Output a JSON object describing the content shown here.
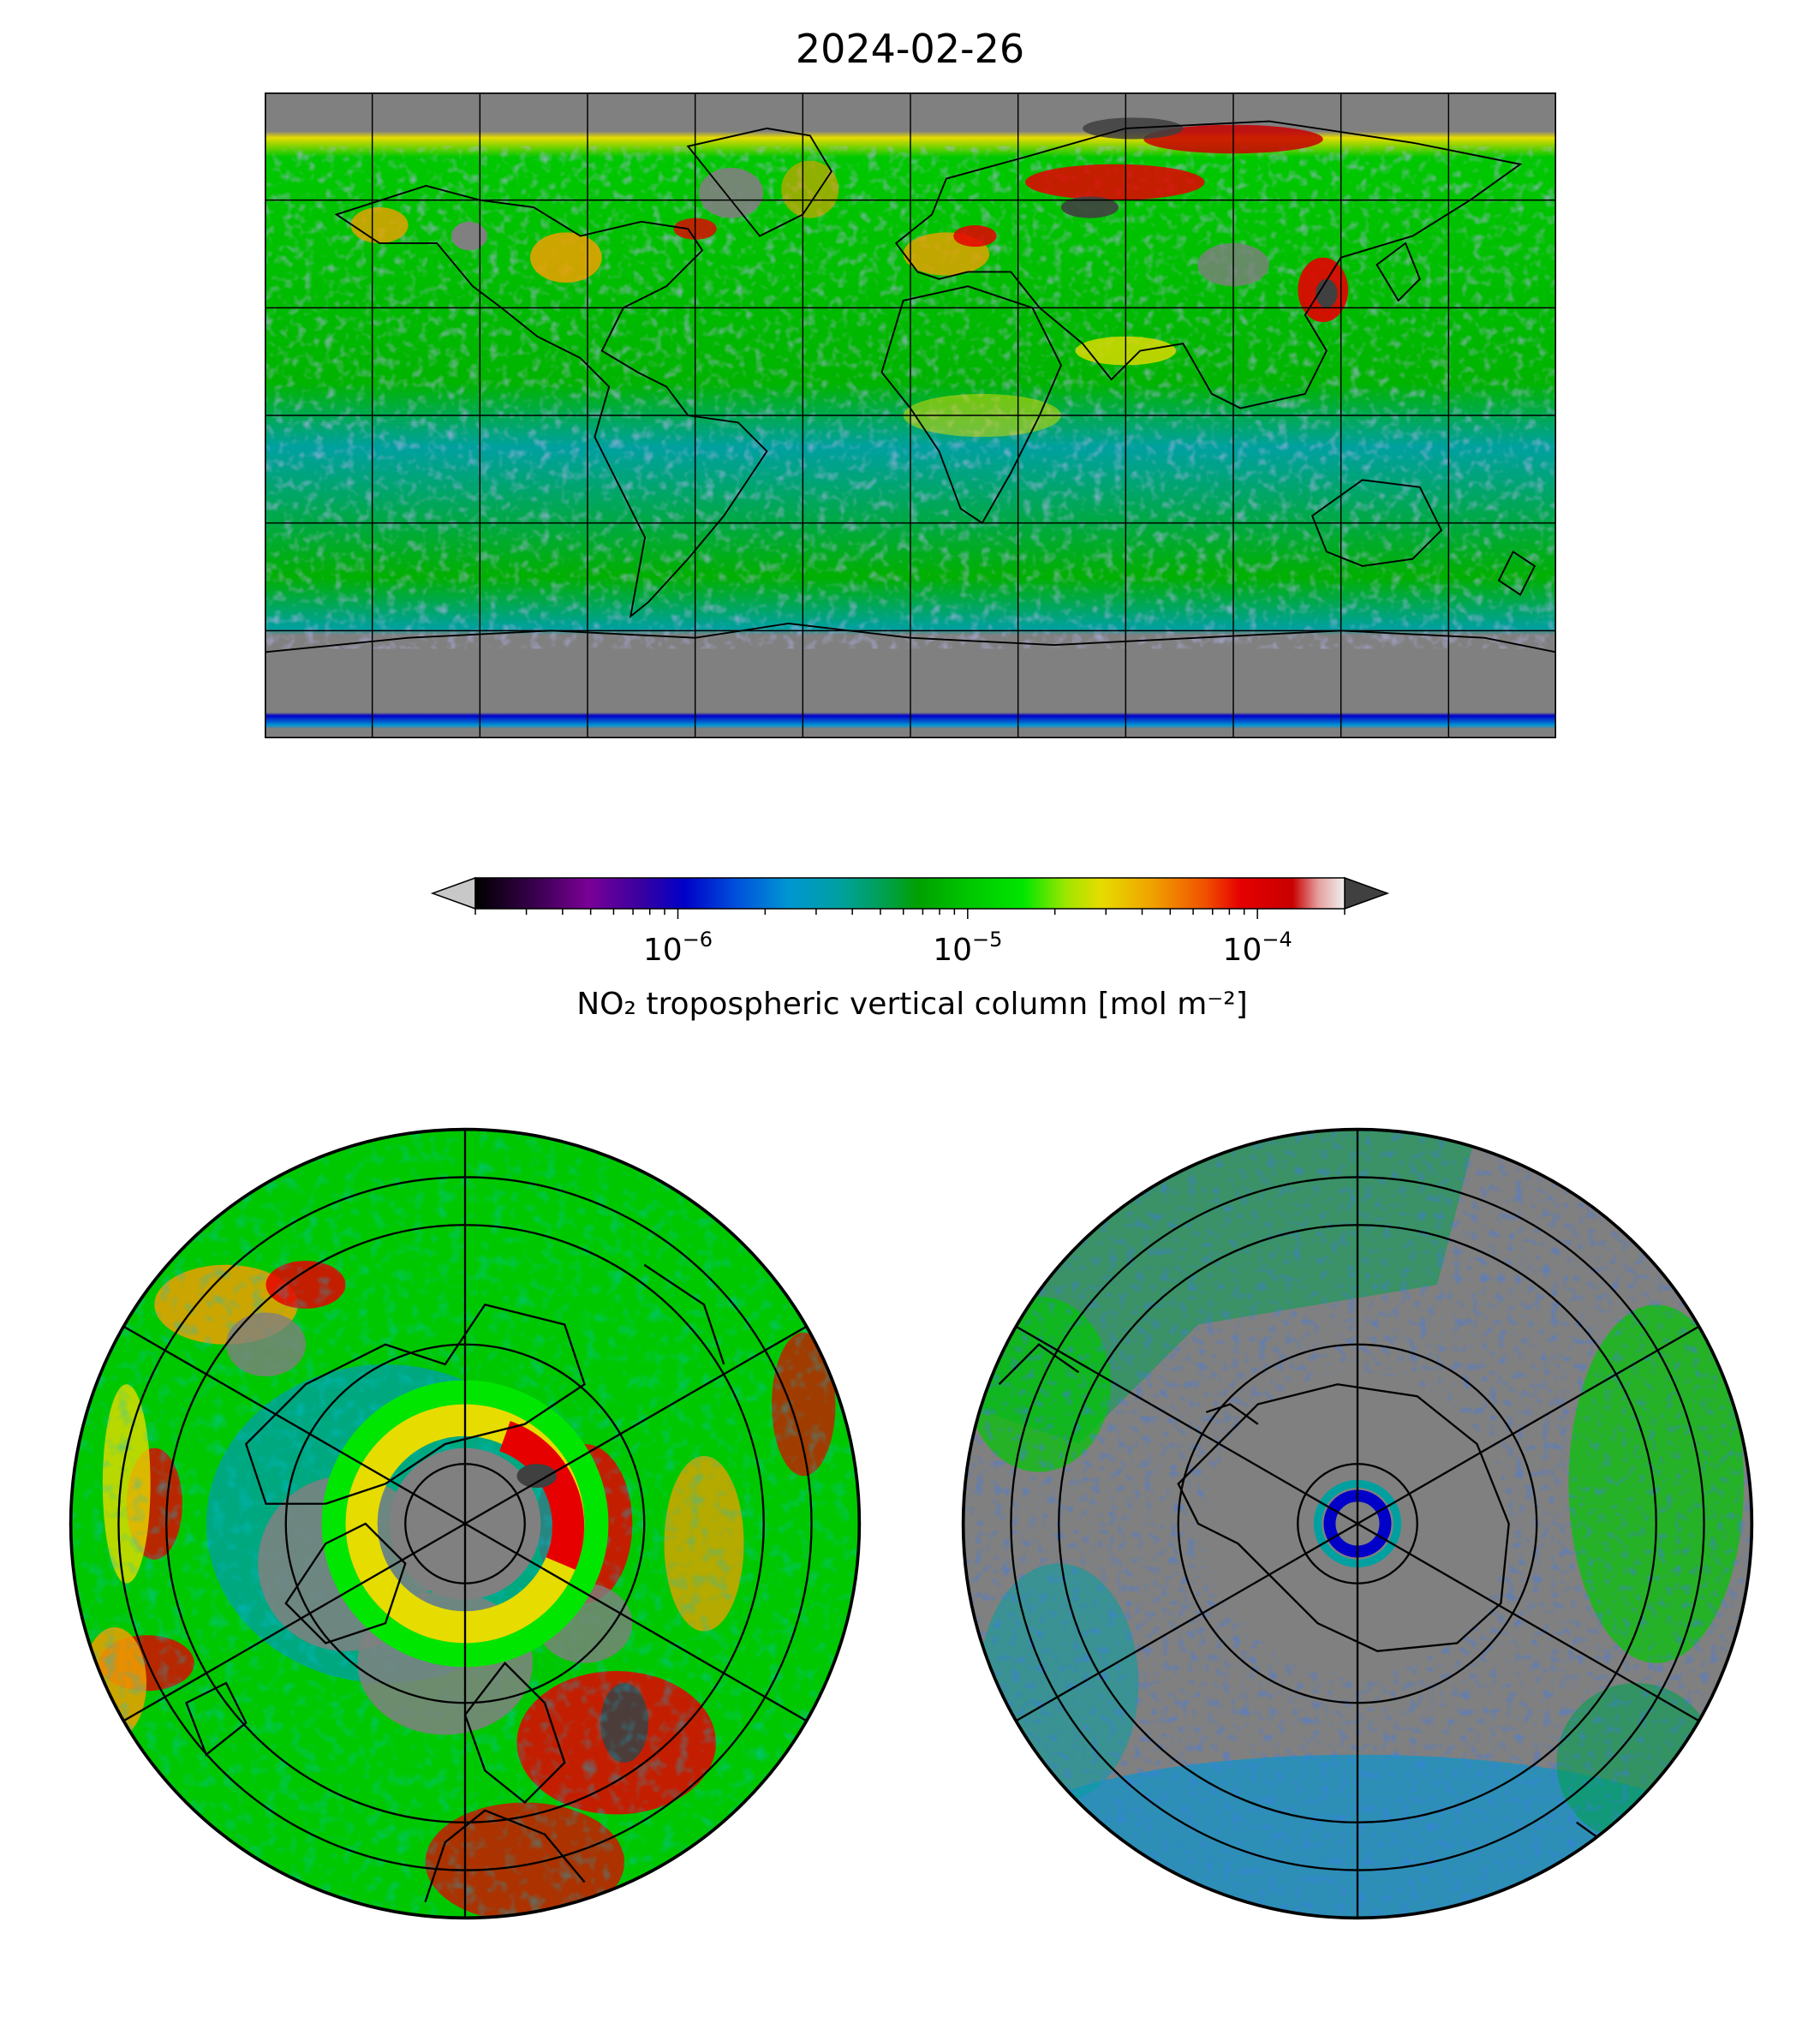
{
  "title": "2024-02-26",
  "colorbar": {
    "label": "NO₂ tropospheric vertical column [mol m⁻²]",
    "scale": "log",
    "range": [
      2e-07,
      0.0002
    ],
    "major_ticks": [
      {
        "value": 1e-06,
        "base": "10",
        "exponent": "−6"
      },
      {
        "value": 1e-05,
        "base": "10",
        "exponent": "−5"
      },
      {
        "value": 0.0001,
        "base": "10",
        "exponent": "−4"
      }
    ],
    "extend": "both",
    "under_color": "#c8c8c8",
    "over_color": "#404040",
    "colors": [
      "#000000",
      "#3a0050",
      "#7a0096",
      "#3a00a0",
      "#0000c8",
      "#0050dc",
      "#0096d2",
      "#00a0a0",
      "#00a050",
      "#00a000",
      "#00c800",
      "#00e600",
      "#a0e600",
      "#e6dc00",
      "#f0a000",
      "#f05000",
      "#e60000",
      "#c80000",
      "#e6a0a0",
      "#f0f0f0"
    ]
  },
  "maps": {
    "world": {
      "projection": "PlateCarree",
      "no_data_color": "#808080",
      "gridlines": true
    },
    "north_pole": {
      "projection": "NorthPolarStereo",
      "no_data_color": "#808080"
    },
    "south_pole": {
      "projection": "SouthPolarStereo",
      "no_data_color": "#808080"
    }
  }
}
